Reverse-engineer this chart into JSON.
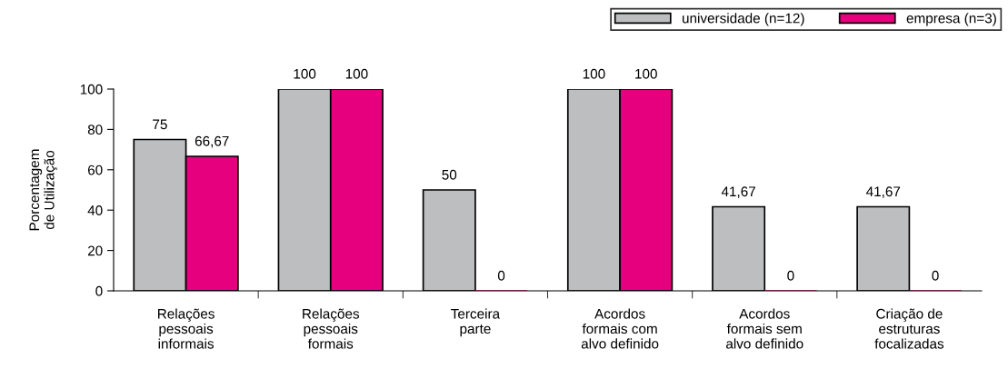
{
  "chart_data": {
    "type": "bar",
    "ylabel": "Porcentagem\nde Utilização",
    "categories": [
      "Relações\npessoais\ninformais",
      "Relações\npessoais\nformais",
      "Terceira\nparte",
      "Acordos\nformais com\nalvo definido",
      "Acordos\nformais sem\nalvo definido",
      "Criação de\nestruturas\nfocalizadas"
    ],
    "series": [
      {
        "name": "universidade (n=12)",
        "color": "#bcbec0",
        "values": [
          75,
          100,
          50,
          100,
          41.67,
          41.67
        ],
        "value_labels": [
          "75",
          "100",
          "50",
          "100",
          "41,67",
          "41,67"
        ]
      },
      {
        "name": "empresa (n=3)",
        "color": "#e6007e",
        "values": [
          66.67,
          100,
          0,
          100,
          0,
          0
        ],
        "value_labels": [
          "66,67",
          "100",
          "0",
          "100",
          "0",
          "0"
        ]
      }
    ],
    "ylim": [
      0,
      100
    ],
    "yticks": [
      0,
      20,
      40,
      60,
      80,
      100
    ],
    "grid": false,
    "legend": "top right"
  }
}
